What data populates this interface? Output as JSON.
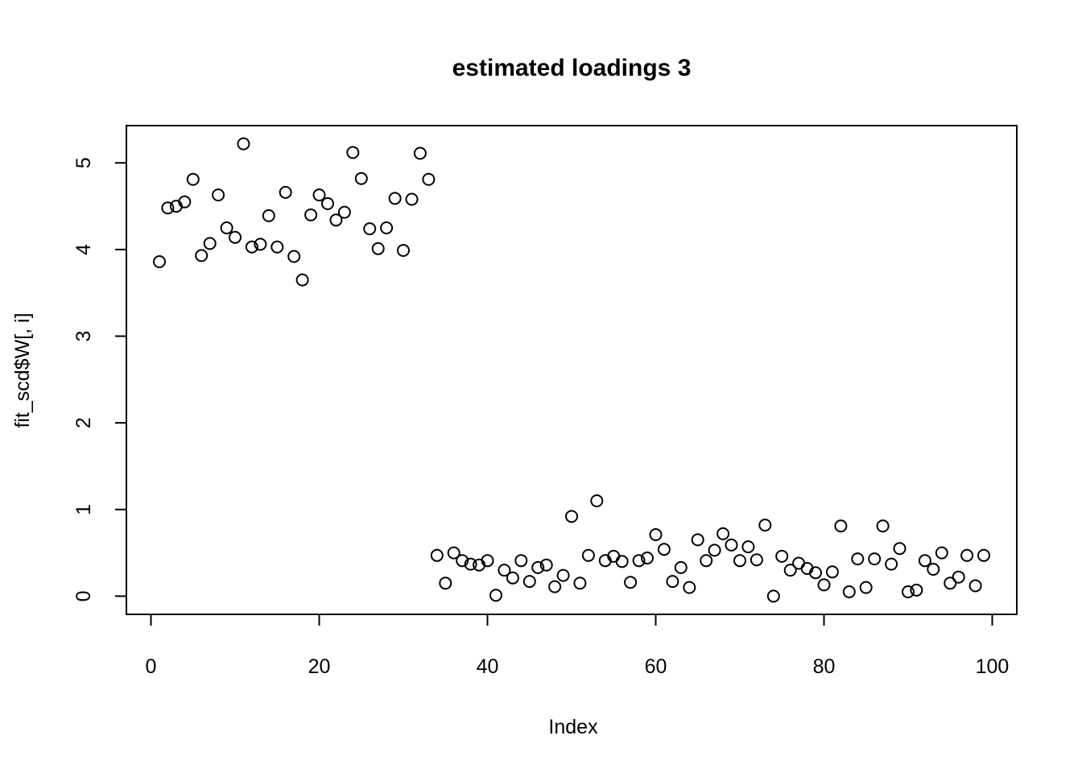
{
  "page": {
    "background": "#ffffff",
    "foreground": "#000000"
  },
  "chart_data": {
    "type": "scatter",
    "title": "estimated loadings 3",
    "xlabel": "Index",
    "ylabel": "fit_scd$W[, i]",
    "marker": "open-circle",
    "marker_color": "#000000",
    "grid": false,
    "legend": null,
    "x_axis": {
      "ticks": [
        0,
        20,
        40,
        60,
        80,
        100
      ],
      "range": [
        -2.92,
        102.92
      ]
    },
    "y_axis": {
      "ticks": [
        0,
        1,
        2,
        3,
        4,
        5
      ],
      "range": [
        -0.21,
        5.43
      ]
    },
    "x_start": 1,
    "n_points": 99,
    "values": [
      3.86,
      4.48,
      4.5,
      4.55,
      4.81,
      3.93,
      4.07,
      4.63,
      4.25,
      4.14,
      5.22,
      4.03,
      4.06,
      4.39,
      4.03,
      4.66,
      3.92,
      3.65,
      4.4,
      4.63,
      4.53,
      4.34,
      4.43,
      5.12,
      4.82,
      4.24,
      4.01,
      4.25,
      4.59,
      3.99,
      4.58,
      5.11,
      4.81,
      0.47,
      0.15,
      0.5,
      0.41,
      0.37,
      0.36,
      0.41,
      0.01,
      0.3,
      0.21,
      0.41,
      0.17,
      0.33,
      0.36,
      0.11,
      0.24,
      0.92,
      0.15,
      0.47,
      1.1,
      0.41,
      0.46,
      0.4,
      0.16,
      0.41,
      0.44,
      0.71,
      0.54,
      0.17,
      0.33,
      0.1,
      0.65,
      0.41,
      0.53,
      0.72,
      0.59,
      0.41,
      0.57,
      0.42,
      0.82,
      0.0,
      0.46,
      0.3,
      0.38,
      0.32,
      0.27,
      0.13,
      0.28,
      0.81,
      0.05,
      0.43,
      0.1,
      0.43,
      0.81,
      0.37,
      0.55,
      0.05,
      0.07,
      0.41,
      0.31,
      0.5,
      0.15,
      0.22,
      0.47,
      0.12,
      0.47
    ]
  }
}
